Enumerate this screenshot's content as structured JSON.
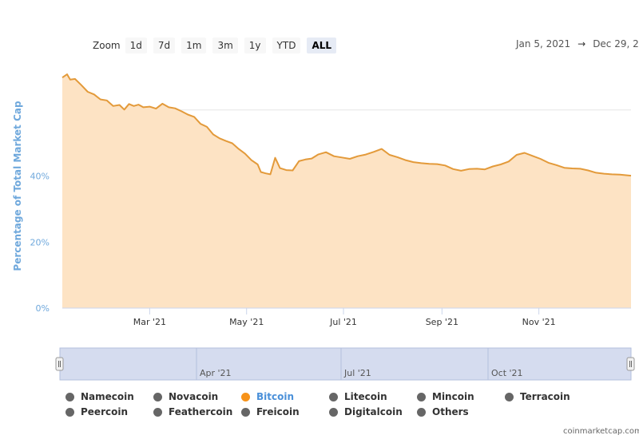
{
  "zoom": {
    "label": "Zoom",
    "buttons": [
      {
        "label": "1d",
        "active": false
      },
      {
        "label": "7d",
        "active": false
      },
      {
        "label": "1m",
        "active": false
      },
      {
        "label": "3m",
        "active": false
      },
      {
        "label": "1y",
        "active": false
      },
      {
        "label": "YTD",
        "active": false
      },
      {
        "label": "ALL",
        "active": true
      }
    ]
  },
  "date_range": {
    "from": "Jan 5, 2021",
    "arrow": "→",
    "to": "Dec 29, 2"
  },
  "colors": {
    "line": "#e39a3a",
    "fill": "#fde3c4",
    "navigator_fill": "#d5dcef",
    "axis_label": "#6fa8dc"
  },
  "chart_data": {
    "type": "area",
    "ylabel": "Percentage of Total Market Cap",
    "ylim": [
      0,
      80
    ],
    "yticks": [
      0,
      20,
      40
    ],
    "ytick_labels": [
      "0%",
      "20%",
      "40%"
    ],
    "xlim": [
      "2021-01-05",
      "2021-12-29"
    ],
    "xticks": [
      {
        "label": "Mar '21",
        "date": "2021-03-01"
      },
      {
        "label": "May '21",
        "date": "2021-05-01"
      },
      {
        "label": "Jul '21",
        "date": "2021-07-01"
      },
      {
        "label": "Sep '21",
        "date": "2021-09-01"
      },
      {
        "label": "Nov '21",
        "date": "2021-11-01"
      }
    ],
    "grid": true,
    "series": [
      {
        "name": "Bitcoin",
        "x": [
          "2021-01-05",
          "2021-01-08",
          "2021-01-10",
          "2021-01-13",
          "2021-01-17",
          "2021-01-21",
          "2021-01-25",
          "2021-01-29",
          "2021-02-02",
          "2021-02-06",
          "2021-02-10",
          "2021-02-13",
          "2021-02-16",
          "2021-02-19",
          "2021-02-22",
          "2021-02-25",
          "2021-03-01",
          "2021-03-05",
          "2021-03-09",
          "2021-03-13",
          "2021-03-17",
          "2021-03-21",
          "2021-03-25",
          "2021-03-29",
          "2021-04-02",
          "2021-04-06",
          "2021-04-10",
          "2021-04-14",
          "2021-04-18",
          "2021-04-22",
          "2021-04-26",
          "2021-04-30",
          "2021-05-04",
          "2021-05-08",
          "2021-05-10",
          "2021-05-13",
          "2021-05-16",
          "2021-05-19",
          "2021-05-22",
          "2021-05-26",
          "2021-05-30",
          "2021-06-03",
          "2021-06-07",
          "2021-06-11",
          "2021-06-15",
          "2021-06-20",
          "2021-06-25",
          "2021-06-30",
          "2021-07-05",
          "2021-07-10",
          "2021-07-15",
          "2021-07-20",
          "2021-07-25",
          "2021-07-30",
          "2021-08-04",
          "2021-08-09",
          "2021-08-14",
          "2021-08-19",
          "2021-08-24",
          "2021-08-29",
          "2021-09-03",
          "2021-09-08",
          "2021-09-13",
          "2021-09-18",
          "2021-09-23",
          "2021-09-28",
          "2021-10-03",
          "2021-10-08",
          "2021-10-13",
          "2021-10-18",
          "2021-10-23",
          "2021-10-28",
          "2021-11-02",
          "2021-11-07",
          "2021-11-12",
          "2021-11-17",
          "2021-11-22",
          "2021-11-27",
          "2021-12-02",
          "2021-12-07",
          "2021-12-12",
          "2021-12-17",
          "2021-12-22",
          "2021-12-29"
        ],
        "y": [
          69.8,
          70.8,
          69.2,
          69.4,
          67.5,
          65.5,
          64.7,
          63.2,
          62.9,
          61.2,
          61.5,
          60.1,
          61.8,
          61.2,
          61.6,
          60.8,
          61.0,
          60.4,
          61.9,
          60.8,
          60.5,
          59.6,
          58.6,
          57.9,
          55.8,
          54.9,
          52.6,
          51.4,
          50.6,
          49.9,
          48.2,
          46.8,
          44.8,
          43.5,
          41.2,
          40.8,
          40.5,
          45.5,
          42.4,
          41.8,
          41.7,
          44.5,
          45.0,
          45.3,
          46.5,
          47.2,
          46.0,
          45.6,
          45.2,
          46.0,
          46.5,
          47.3,
          48.2,
          46.4,
          45.7,
          44.8,
          44.2,
          43.9,
          43.7,
          43.6,
          43.2,
          42.1,
          41.6,
          42.1,
          42.2,
          42.0,
          42.9,
          43.5,
          44.4,
          46.4,
          47.0,
          46.1,
          45.2,
          44.0,
          43.3,
          42.5,
          42.3,
          42.2,
          41.7,
          41.0,
          40.7,
          40.5,
          40.4,
          40.1
        ]
      }
    ],
    "navigator_ticks": [
      "Apr '21",
      "Jul '21",
      "Oct '21"
    ]
  },
  "legend": [
    {
      "label": "Namecoin",
      "active": false
    },
    {
      "label": "Novacoin",
      "active": false
    },
    {
      "label": "Bitcoin",
      "active": true
    },
    {
      "label": "Litecoin",
      "active": false
    },
    {
      "label": "Mincoin",
      "active": false
    },
    {
      "label": "Terracoin",
      "active": false
    },
    {
      "label": "Peercoin",
      "active": false
    },
    {
      "label": "Feathercoin",
      "active": false
    },
    {
      "label": "Freicoin",
      "active": false
    },
    {
      "label": "Digitalcoin",
      "active": false
    },
    {
      "label": "Others",
      "active": false
    }
  ],
  "credit": "coinmarketcap.com"
}
